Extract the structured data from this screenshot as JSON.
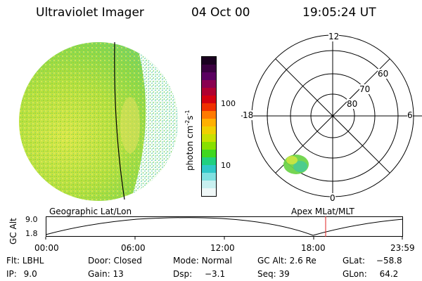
{
  "header": {
    "title": "Ultraviolet Imager",
    "date": "04 Oct 00",
    "time": "19:05:24 UT"
  },
  "colorbar": {
    "label": "photon cm",
    "sup1": "-2",
    "mid": "s",
    "sup2": "-1",
    "ticks": [
      "100",
      "10"
    ],
    "colors": [
      "#1a0020",
      "#3a0040",
      "#5a0060",
      "#8a0050",
      "#b00030",
      "#d40010",
      "#f03000",
      "#ff7a00",
      "#ffb000",
      "#f0d000",
      "#c8e000",
      "#88e000",
      "#40d820",
      "#20d080",
      "#30c8c8",
      "#80e0e0",
      "#c8f0f0",
      "#f0f8f8"
    ]
  },
  "polar": {
    "clock_labels": [
      "12",
      "6",
      "0",
      "18"
    ],
    "lat_labels": [
      "60",
      "70",
      "80"
    ]
  },
  "timeline": {
    "left_label": "Geographic Lat/Lon",
    "right_label": "Apex MLat/MLT",
    "axis_label": "GC Alt",
    "y_ticks": [
      "9.0",
      "1.8"
    ],
    "x_ticks": [
      "00:00",
      "06:00",
      "12:00",
      "18:00",
      "23:59"
    ]
  },
  "info": {
    "flt_label": "Flt:",
    "flt": "LBHL",
    "door_label": "Door:",
    "door": "Closed",
    "mode_label": "Mode:",
    "mode": "Normal",
    "gcalt_label": "GC Alt:",
    "gcalt": "2.6 Re",
    "glat_label": "GLat:",
    "glat": "−58.8",
    "ip_label": "IP:",
    "ip": "9.0",
    "gain_label": "Gain:",
    "gain": "13",
    "dsp_label": "Dsp:",
    "dsp": "−3.1",
    "seq_label": "Seq:",
    "seq": "39",
    "glon_label": "GLon:",
    "glon": "64.2"
  },
  "colors": {
    "marker": "#e02020",
    "aurora": "#6ed44a",
    "aurora_core": "#3cc8a8"
  }
}
